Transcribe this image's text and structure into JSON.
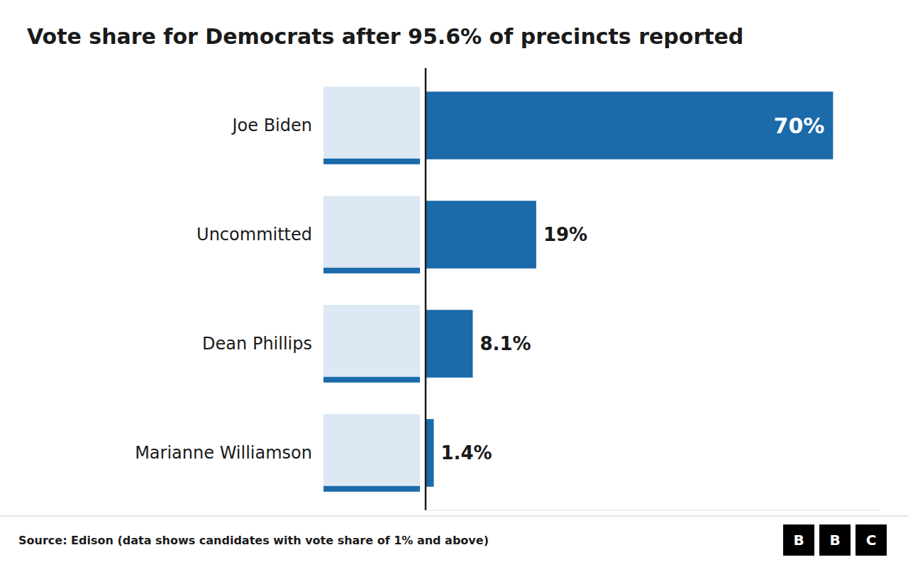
{
  "chart_data": {
    "type": "bar",
    "orientation": "horizontal",
    "title": "Vote share for Democrats after 95.6% of precincts reported",
    "categories": [
      "Joe Biden",
      "Uncommitted",
      "Dean Phillips",
      "Marianne Williamson"
    ],
    "values": [
      70,
      19,
      8.1,
      1.4
    ],
    "value_labels": [
      "70%",
      "19%",
      "8.1%",
      "1.4%"
    ],
    "color": "#1b6aaa",
    "xlim": [
      0,
      78
    ],
    "data_labels": true,
    "tick_labels": "y",
    "annotations": [
      "Source: Edison (data shows candidates with vote share of 1% and above)",
      "BBC"
    ]
  }
}
